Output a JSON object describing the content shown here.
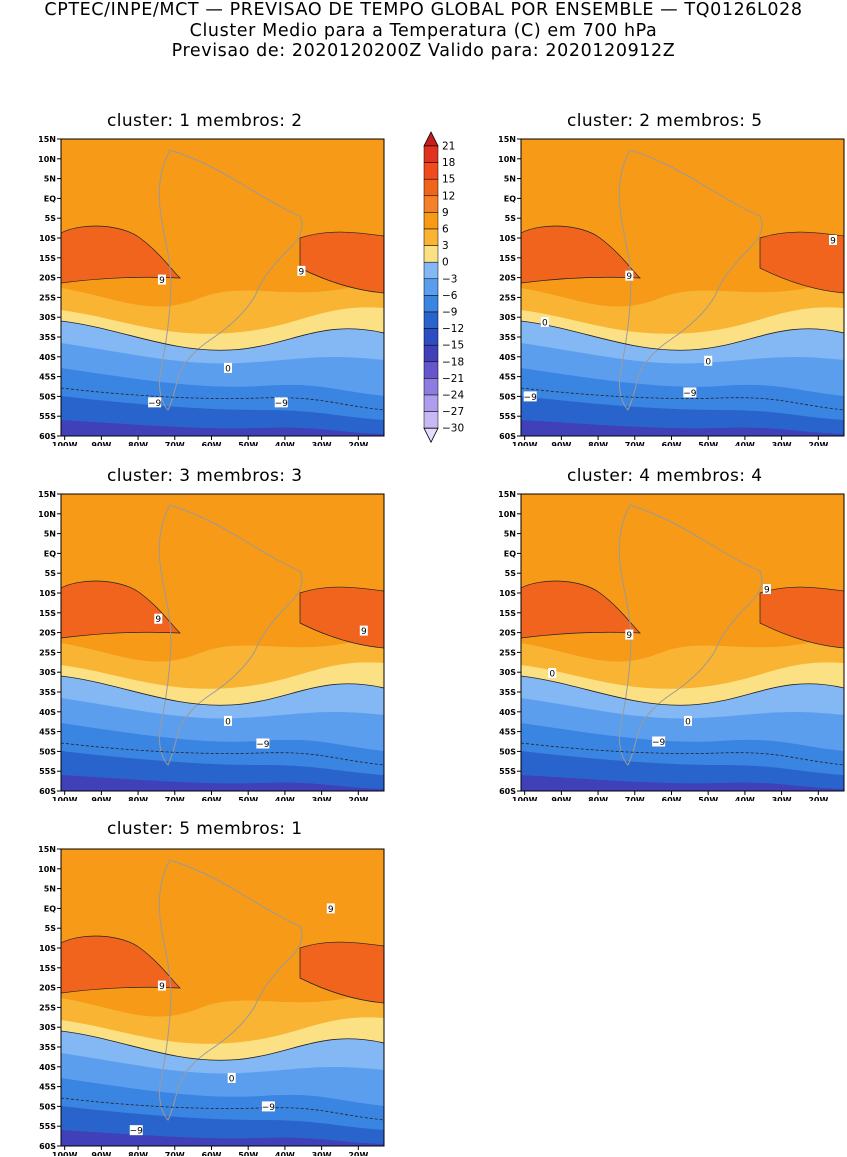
{
  "header": {
    "line1": "CPTEC/INPE/MCT — PREVISAO DE TEMPO GLOBAL POR ENSEMBLE — TQ0126L028",
    "line2": "Cluster Medio para a Temperatura (C) em 700 hPa",
    "line3": "Previsao de: 2020120200Z   Valido para: 2020120912Z"
  },
  "chart_data": {
    "type": "heatmap",
    "variable": "Temperatura (C) em 700 hPa",
    "x_ticks": [
      "100W",
      "90W",
      "80W",
      "70W",
      "60W",
      "50W",
      "40W",
      "30W",
      "20W"
    ],
    "y_ticks": [
      "15N",
      "10N",
      "5N",
      "EQ",
      "5S",
      "10S",
      "15S",
      "20S",
      "25S",
      "30S",
      "35S",
      "40S",
      "45S",
      "50S",
      "55S",
      "60S"
    ],
    "xlim": [
      -101,
      -13
    ],
    "ylim": [
      -60,
      15
    ],
    "colorbar": {
      "labels": [
        "21",
        "18",
        "15",
        "12",
        "9",
        "6",
        "3",
        "0",
        "-3",
        "-6",
        "-9",
        "-12",
        "-15",
        "-18",
        "-21",
        "-24",
        "-27",
        "-30"
      ],
      "colors": [
        "#c41e1e",
        "#e0321e",
        "#f04a1e",
        "#f0641e",
        "#f48028",
        "#f69a18",
        "#f8b432",
        "#fbe084",
        "#84b8f4",
        "#5c9eee",
        "#3a84e2",
        "#2864cc",
        "#2c4ec0",
        "#4040b8",
        "#6656cc",
        "#8e7ce0",
        "#ae9cec",
        "#c8b8f4",
        "#e4dcfc"
      ]
    },
    "panels": [
      {
        "id": 1,
        "title": "cluster: 1   membros: 2",
        "contour_labels": [
          {
            "text": "9",
            "lon": -73.5,
            "lat": -20.5
          },
          {
            "text": "9",
            "lon": -35.5,
            "lat": -18.3
          },
          {
            "text": "0",
            "lon": -55.5,
            "lat": -42.8
          },
          {
            "text": "−9",
            "lon": -75.5,
            "lat": -51.5
          },
          {
            "text": "−9",
            "lon": -41,
            "lat": -51.5
          }
        ]
      },
      {
        "id": 2,
        "title": "cluster: 2   membros: 5",
        "contour_labels": [
          {
            "text": "9",
            "lon": -71.5,
            "lat": -19.5
          },
          {
            "text": "9",
            "lon": -16,
            "lat": -10.5
          },
          {
            "text": "0",
            "lon": -94.5,
            "lat": -31.2
          },
          {
            "text": "0",
            "lon": -50,
            "lat": -41
          },
          {
            "text": "−9",
            "lon": -98.5,
            "lat": -50
          },
          {
            "text": "−9",
            "lon": -55,
            "lat": -49
          }
        ]
      },
      {
        "id": 3,
        "title": "cluster: 3   membros: 3",
        "contour_labels": [
          {
            "text": "9",
            "lon": -74.5,
            "lat": -16.5
          },
          {
            "text": "9",
            "lon": -18.5,
            "lat": -19.5
          },
          {
            "text": "0",
            "lon": -55.5,
            "lat": -42.3
          },
          {
            "text": "−9",
            "lon": -46,
            "lat": -48
          }
        ]
      },
      {
        "id": 4,
        "title": "cluster: 4   membros: 4",
        "contour_labels": [
          {
            "text": "9",
            "lon": -71.5,
            "lat": -20.5
          },
          {
            "text": "9",
            "lon": -34,
            "lat": -9
          },
          {
            "text": "0",
            "lon": -92.5,
            "lat": -30.2
          },
          {
            "text": "0",
            "lon": -55.5,
            "lat": -42.3
          },
          {
            "text": "−9",
            "lon": -63.5,
            "lat": -47.5
          }
        ]
      },
      {
        "id": 5,
        "title": "cluster: 5   membros: 1",
        "contour_labels": [
          {
            "text": "9",
            "lon": -73.5,
            "lat": -19.5
          },
          {
            "text": "9",
            "lon": -27.5,
            "lat": 0
          },
          {
            "text": "0",
            "lon": -54.5,
            "lat": -42.8
          },
          {
            "text": "−9",
            "lon": -44.5,
            "lat": -50
          },
          {
            "text": "−9",
            "lon": -80.5,
            "lat": -56
          }
        ]
      }
    ]
  }
}
